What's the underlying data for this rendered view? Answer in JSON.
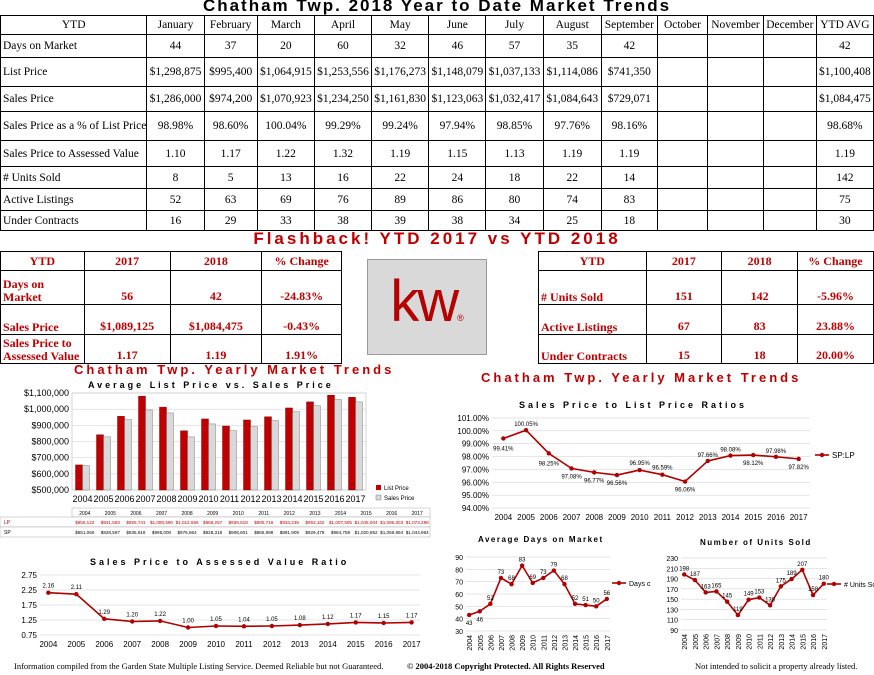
{
  "main_title": "Chatham Twp. 2018 Year to Date Market Trends",
  "ytd_table": {
    "header": [
      "YTD",
      "January",
      "February",
      "March",
      "April",
      "May",
      "June",
      "July",
      "August",
      "September",
      "October",
      "November",
      "December",
      "YTD AVG"
    ],
    "rows": [
      {
        "label": "Days on Market",
        "cells": [
          "44",
          "37",
          "20",
          "60",
          "32",
          "46",
          "57",
          "35",
          "42",
          "",
          "",
          "",
          "42"
        ]
      },
      {
        "label": "List Price",
        "cells": [
          "$1,298,875",
          "$995,400",
          "$1,064,915",
          "$1,253,556",
          "$1,176,273",
          "$1,148,079",
          "$1,037,133",
          "$1,114,086",
          "$741,350",
          "",
          "",
          "",
          "$1,100,408"
        ]
      },
      {
        "label": "Sales Price",
        "cells": [
          "$1,286,000",
          "$974,200",
          "$1,070,923",
          "$1,234,250",
          "$1,161,830",
          "$1,123,063",
          "$1,032,417",
          "$1,084,643",
          "$729,071",
          "",
          "",
          "",
          "$1,084,475"
        ]
      },
      {
        "label": "Sales Price as a % of List Price",
        "cells": [
          "98.98%",
          "98.60%",
          "100.04%",
          "99.29%",
          "99.24%",
          "97.94%",
          "98.85%",
          "97.76%",
          "98.16%",
          "",
          "",
          "",
          "98.68%"
        ]
      },
      {
        "label": "Sales Price to Assessed Value",
        "cells": [
          "1.10",
          "1.17",
          "1.22",
          "1.32",
          "1.19",
          "1.15",
          "1.13",
          "1.19",
          "1.19",
          "",
          "",
          "",
          "1.19"
        ]
      },
      {
        "label": "# Units Sold",
        "cells": [
          "8",
          "5",
          "13",
          "16",
          "22",
          "24",
          "18",
          "22",
          "14",
          "",
          "",
          "",
          "142"
        ]
      },
      {
        "label": "Active Listings",
        "cells": [
          "52",
          "63",
          "69",
          "76",
          "89",
          "86",
          "80",
          "74",
          "83",
          "",
          "",
          "",
          "75"
        ]
      },
      {
        "label": "Under Contracts",
        "cells": [
          "16",
          "29",
          "33",
          "38",
          "39",
          "38",
          "34",
          "25",
          "18",
          "",
          "",
          "",
          "30"
        ]
      }
    ]
  },
  "flashback_title": "Flashback!  YTD 2017 vs YTD 2018",
  "flash_left": {
    "header": [
      "YTD",
      "2017",
      "2018",
      "% Change"
    ],
    "rows": [
      {
        "label": "Days on Market",
        "cells": [
          "56",
          "42",
          "-24.83%"
        ]
      },
      {
        "label": "Sales Price",
        "cells": [
          "$1,089,125",
          "$1,084,475",
          "-0.43%"
        ]
      },
      {
        "label": "Sales Price to Assessed Value",
        "cells": [
          "1.17",
          "1.19",
          "1.91%"
        ]
      }
    ]
  },
  "flash_right": {
    "header": [
      "YTD",
      "2017",
      "2018",
      "% Change"
    ],
    "rows": [
      {
        "label": "# Units Sold",
        "cells": [
          "151",
          "142",
          "-5.96%"
        ]
      },
      {
        "label": "Active Listings",
        "cells": [
          "67",
          "83",
          "23.88%"
        ]
      },
      {
        "label": "Under Contracts",
        "cells": [
          "15",
          "18",
          "20.00%"
        ]
      }
    ]
  },
  "logo": {
    "text": "kw",
    "mark": "®",
    "bg": "#d9d9d9",
    "color": "#b40101"
  },
  "section_left_title": "Chatham Twp. Yearly Market Trends",
  "section_right_title": "Chatham Twp. Yearly Market Trends",
  "colors": {
    "red": "#c00000",
    "bar_list": "#c00000",
    "bar_sales": "#d9d9d9",
    "line": "#b00000"
  },
  "chart_data": [
    {
      "type": "bar",
      "title": "Average List Price vs. Sales Price",
      "categories": [
        "2004",
        "2005",
        "2006",
        "2007",
        "2008",
        "2009",
        "2010",
        "2011",
        "2012",
        "2013",
        "2014",
        "2015",
        "2016",
        "2017"
      ],
      "series": [
        {
          "name": "List Price",
          "row_label": "LP",
          "values": [
            655122,
            841583,
            955741,
            1080590,
            1012666,
            866267,
            939518,
            895716,
            933235,
            953162,
            1007505,
            1045004,
            1086303,
            1073298
          ],
          "labels": [
            "$655,122",
            "$841,583",
            "$955,741",
            "$1,080,590",
            "$1,012,666",
            "$866,267",
            "$939,518",
            "$895,716",
            "$933,235",
            "$953,162",
            "$1,007,505",
            "$1,045,004",
            "$1,086,303",
            "$1,073,298"
          ]
        },
        {
          "name": "Sales Price",
          "row_label": "SP",
          "values": [
            651060,
            828597,
            935918,
            995000,
            976664,
            828318,
            908601,
            866988,
            891909,
            929478,
            984759,
            1020952,
            1059894,
            1044964
          ],
          "labels": [
            "$651,060",
            "$828,597",
            "$935,918",
            "$995,000",
            "$976,664",
            "$828,318",
            "$908,601",
            "$866,988",
            "$891,909",
            "$929,478",
            "$984,759",
            "$1,020,952",
            "$1,059,894",
            "$1,044,964"
          ]
        }
      ],
      "yticks": [
        "$1,100,000",
        "$1,000,000",
        "$900,000",
        "$800,000",
        "$700,000",
        "$600,000",
        "$500,000"
      ],
      "ylim": [
        500000,
        1100000
      ]
    },
    {
      "type": "line",
      "title": "Sales Price to List Price Ratios",
      "categories": [
        "2004",
        "2005",
        "2006",
        "2007",
        "2008",
        "2009",
        "2010",
        "2011",
        "2012",
        "2013",
        "2014",
        "2015",
        "2016",
        "2017"
      ],
      "series": [
        {
          "name": "SP:LP",
          "values": [
            99.41,
            100.05,
            98.25,
            97.08,
            96.77,
            96.56,
            96.95,
            96.59,
            96.06,
            97.66,
            98.08,
            98.12,
            97.98,
            97.82
          ],
          "labels": [
            "99.41%",
            "100.05%",
            "98.25%",
            "97.08%",
            "96.77%",
            "96.56%",
            "96.95%",
            "96.59%",
            "96.06%",
            "97.66%",
            "98.08%",
            "98.12%",
            "97.98%",
            "97.82%"
          ]
        }
      ],
      "yticks": [
        "101.00%",
        "100.00%",
        "99.00%",
        "98.00%",
        "97.00%",
        "96.00%",
        "95.00%",
        "94.00%"
      ],
      "ylim": [
        94,
        101
      ]
    },
    {
      "type": "line",
      "title": "Sales Price to Assessed Value Ratio",
      "categories": [
        "2004",
        "2005",
        "2006",
        "2007",
        "2008",
        "2009",
        "2010",
        "2011",
        "2012",
        "2013",
        "2014",
        "2015",
        "2016",
        "2017"
      ],
      "series": [
        {
          "name": "",
          "values": [
            2.16,
            2.11,
            1.29,
            1.2,
            1.22,
            1.0,
            1.05,
            1.04,
            1.05,
            1.08,
            1.12,
            1.17,
            1.15,
            1.17
          ],
          "labels": [
            "2.16",
            "2.11",
            "1.29",
            "1.20",
            "1.22",
            "1.00",
            "1.05",
            "1.04",
            "1.05",
            "1.08",
            "1.12",
            "1.17",
            "1.15",
            "1.17"
          ]
        }
      ],
      "categories_shown": [
        "2004",
        "2005",
        "2006",
        "2007",
        "2008",
        "2009",
        "2010",
        "2011",
        "2012",
        "2013",
        "2014",
        "2015",
        "2016",
        "2017"
      ],
      "yticks": [
        "2.75",
        "2.25",
        "1.75",
        "1.25",
        "0.75"
      ],
      "ylim": [
        0.75,
        2.75
      ]
    },
    {
      "type": "line",
      "title": "Average Days on Market",
      "categories": [
        "2004",
        "2005",
        "2006",
        "2007",
        "2008",
        "2009",
        "2010",
        "2011",
        "2012",
        "2013",
        "2014",
        "2015",
        "2016",
        "2017"
      ],
      "series": [
        {
          "name": "Days on Market",
          "values": [
            43,
            46,
            52,
            73,
            68,
            83,
            69,
            73,
            79,
            68,
            52,
            51,
            50,
            56
          ],
          "labels": [
            "43",
            "46",
            "52",
            "73",
            "68",
            "83",
            "69",
            "73",
            "79",
            "68",
            "52",
            "51",
            "50",
            "56"
          ]
        }
      ],
      "yticks": [
        "90",
        "80",
        "70",
        "60",
        "50",
        "40",
        "30"
      ],
      "ylim": [
        30,
        90
      ]
    },
    {
      "type": "line",
      "title": "Number of Units Sold",
      "categories": [
        "2004",
        "2005",
        "2006",
        "2007",
        "2008",
        "2009",
        "2010",
        "2011",
        "2012",
        "2013",
        "2014",
        "2015",
        "2016",
        "2017"
      ],
      "series": [
        {
          "name": "# Units Sold",
          "values": [
            198,
            187,
            163,
            165,
            145,
            119,
            149,
            153,
            138,
            175,
            189,
            207,
            158,
            180
          ],
          "labels": [
            "198",
            "187",
            "163",
            "165",
            "145",
            "119",
            "149",
            "153",
            "138",
            "175",
            "189",
            "207",
            "158",
            "180"
          ]
        }
      ],
      "yticks": [
        "230",
        "210",
        "190",
        "170",
        "150",
        "130",
        "110",
        "90"
      ],
      "ylim": [
        90,
        230
      ]
    }
  ],
  "footer": {
    "left": "Information compiled from the Garden State Multiple Listing Service.  Deemed Reliable but not Guaranteed.",
    "center": "© 2004-2018 Copyright Protected.  All Rights Reserved",
    "right": "Not intended to solicit a property already listed."
  }
}
